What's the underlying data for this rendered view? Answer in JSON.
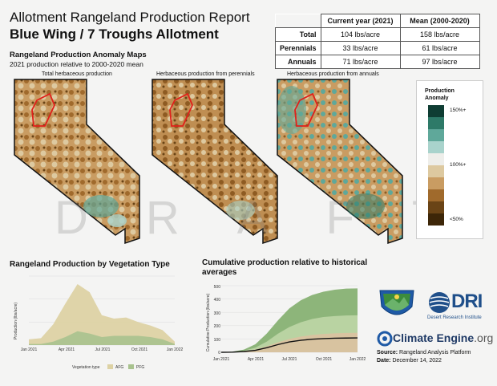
{
  "header": {
    "title": "Allotment Rangeland Production Report",
    "subtitle": "Blue Wing / 7 Troughs Allotment"
  },
  "stats_table": {
    "columns": [
      "",
      "Current year (2021)",
      "Mean (2000-2020)"
    ],
    "rows": [
      {
        "label": "Total",
        "current": "104 lbs/acre",
        "mean": "158 lbs/acre"
      },
      {
        "label": "Perennials",
        "current": "33 lbs/acre",
        "mean": "61 lbs/acre"
      },
      {
        "label": "Annuals",
        "current": "71 lbs/acre",
        "mean": "97 lbs/acre"
      }
    ]
  },
  "maps_section": {
    "title": "Rangeland Production Anomaly Maps",
    "subtitle": "2021 production relative to 2000-2020 mean",
    "maps": [
      {
        "label": "Total herbaceous production"
      },
      {
        "label": "Herbaceous production from perennials"
      },
      {
        "label": "Herbaceous production from annuals"
      }
    ],
    "watermark": "DRAFT"
  },
  "legend": {
    "title_line1": "Production",
    "title_line2": "Anomaly",
    "ticks": [
      "150%+",
      "100%+",
      "<50%"
    ],
    "colors": [
      "#0f3d33",
      "#2e7a68",
      "#5fa89a",
      "#a9d3cc",
      "#eeeeea",
      "#ddc9a0",
      "#c99c62",
      "#a06a2c",
      "#6a4416",
      "#3d2608"
    ]
  },
  "veg_chart": {
    "title": "Rangeland Production by Vegetation Type",
    "ylabel": "Production (lbs/acre)",
    "xticks": [
      "Jan 2021",
      "Apr 2021",
      "Jul 2021",
      "Oct 2021",
      "Jan 2022"
    ],
    "legend_title": "Vegetation type",
    "legend_items": [
      "AFG",
      "PFG"
    ],
    "colors": {
      "AFG": "#ddd2a4",
      "PFG": "#a8c28e"
    }
  },
  "cum_chart": {
    "title": "Cumulative production relative to historical averages",
    "ylabel": "Cumulative Production (lbs/acre)",
    "xticks": [
      "Jan 2021",
      "Apr 2021",
      "Jul 2021",
      "Oct 2021",
      "Jan 2022"
    ],
    "yticks": [
      "0",
      "100",
      "200",
      "300",
      "400",
      "500"
    ]
  },
  "logos": {
    "dri": "DRI",
    "dri_sub": "Desert Research Institute",
    "climate_engine": "Climate Engine",
    "climate_engine_suffix": ".org"
  },
  "footer": {
    "source_label": "Source:",
    "source_value": "Rangeland Analysis Platform",
    "date_label": "Date:",
    "date_value": "December 14, 2022"
  },
  "chart_data": [
    {
      "type": "area",
      "title": "Rangeland Production by Vegetation Type",
      "ylabel": "Production (lbs/acre)",
      "x": [
        "Jan 2021",
        "Feb 2021",
        "Mar 2021",
        "Apr 2021",
        "May 2021",
        "Jun 2021",
        "Jul 2021",
        "Aug 2021",
        "Sep 2021",
        "Oct 2021",
        "Nov 2021",
        "Dec 2021",
        "Jan 2022"
      ],
      "series": [
        {
          "name": "AFG",
          "values": [
            0.5,
            0.6,
            1.8,
            3.6,
            5.3,
            4.6,
            2.6,
            2.3,
            2.4,
            2.0,
            1.7,
            1.3,
            0.3
          ]
        },
        {
          "name": "PFG",
          "values": [
            0.1,
            0.1,
            0.3,
            0.7,
            1.2,
            1.0,
            0.7,
            0.8,
            0.8,
            0.8,
            0.7,
            0.5,
            0.1
          ]
        }
      ]
    },
    {
      "type": "area",
      "title": "Cumulative production relative to historical averages",
      "ylabel": "Cumulative Production (lbs/acre)",
      "ylim": [
        0,
        500
      ],
      "x": [
        "Jan 2021",
        "Feb 2021",
        "Mar 2021",
        "Apr 2021",
        "May 2021",
        "Jun 2021",
        "Jul 2021",
        "Aug 2021",
        "Sep 2021",
        "Oct 2021",
        "Nov 2021",
        "Dec 2021",
        "Jan 2022"
      ],
      "series": [
        {
          "name": "upper",
          "values": [
            0,
            5,
            20,
            60,
            140,
            240,
            330,
            390,
            430,
            455,
            470,
            478,
            480
          ]
        },
        {
          "name": "middle",
          "values": [
            0,
            3,
            12,
            35,
            80,
            140,
            190,
            225,
            250,
            265,
            272,
            276,
            278
          ]
        },
        {
          "name": "lower",
          "values": [
            0,
            2,
            8,
            20,
            45,
            75,
            100,
            118,
            130,
            138,
            142,
            145,
            146
          ]
        },
        {
          "name": "current",
          "values": [
            0,
            1,
            6,
            15,
            34,
            58,
            78,
            90,
            98,
            103,
            106,
            107,
            108
          ]
        }
      ]
    }
  ]
}
